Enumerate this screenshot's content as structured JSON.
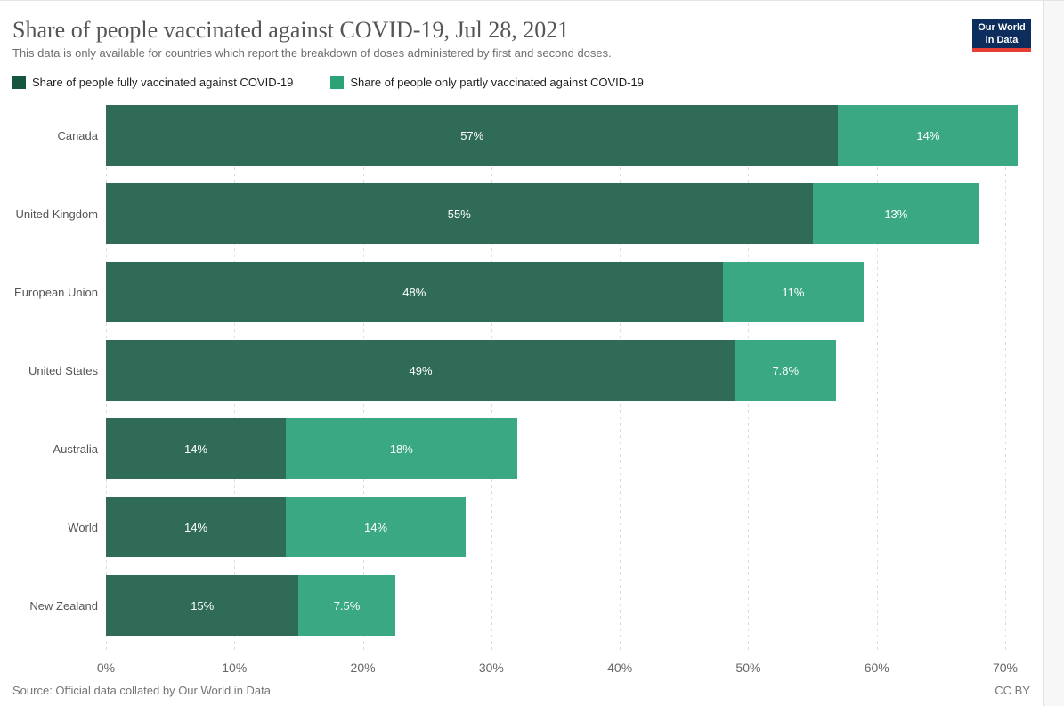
{
  "header": {
    "title": "Share of people vaccinated against COVID-19, Jul 28, 2021",
    "subtitle": "This data is only available for countries which report the breakdown of doses administered by first and second doses.",
    "logo": {
      "line1": "Our World",
      "line2": "in Data",
      "bg_color": "#0d2e5c",
      "accent_color": "#e63d34"
    }
  },
  "legend": {
    "items": [
      {
        "label": "Share of people fully vaccinated against COVID-19",
        "color": "#16563e"
      },
      {
        "label": "Share of people only partly vaccinated against COVID-19",
        "color": "#2ca377"
      }
    ]
  },
  "chart_data": {
    "type": "bar",
    "orientation": "horizontal",
    "stacked": true,
    "title": "Share of people vaccinated against COVID-19, Jul 28, 2021",
    "categories": [
      "Canada",
      "United Kingdom",
      "European Union",
      "United States",
      "Australia",
      "World",
      "New Zealand"
    ],
    "series": [
      {
        "name": "Share of people fully vaccinated against COVID-19",
        "color": "#2f6b57",
        "values": [
          57,
          55,
          48,
          49,
          14,
          14,
          15
        ],
        "labels": [
          "57%",
          "55%",
          "48%",
          "49%",
          "14%",
          "14%",
          "15%"
        ]
      },
      {
        "name": "Share of people only partly vaccinated against COVID-19",
        "color": "#3aa883",
        "values": [
          14,
          13,
          11,
          7.8,
          18,
          14,
          7.5
        ],
        "labels": [
          "14%",
          "13%",
          "11%",
          "7.8%",
          "18%",
          "14%",
          "7.5%"
        ]
      }
    ],
    "x_ticks": [
      {
        "value": 0,
        "label": "0%"
      },
      {
        "value": 10,
        "label": "10%"
      },
      {
        "value": 20,
        "label": "20%"
      },
      {
        "value": 30,
        "label": "30%"
      },
      {
        "value": 40,
        "label": "40%"
      },
      {
        "value": 50,
        "label": "50%"
      },
      {
        "value": 60,
        "label": "60%"
      },
      {
        "value": 70,
        "label": "70%"
      }
    ],
    "xlim": [
      0,
      70
    ],
    "grid": true,
    "grid_style": "dashed-vertical",
    "legend_position": "top"
  },
  "footer": {
    "source": "Source: Official data collated by Our World in Data",
    "license": "CC BY"
  }
}
